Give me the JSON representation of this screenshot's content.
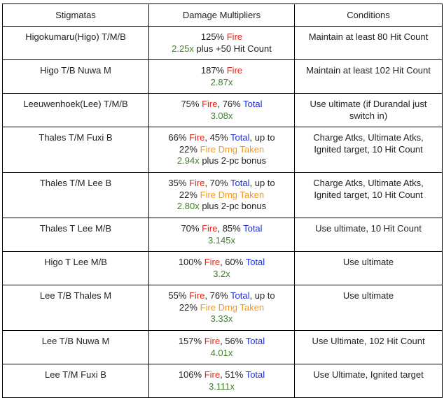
{
  "headers": [
    "Stigmatas",
    "Damage Multipliers",
    "Conditions"
  ],
  "colors": {
    "fire": "#e8261a",
    "total": "#1c2ee0",
    "fire_dmg_taken": "#f39a1e",
    "multiplier": "#3f7f2a"
  },
  "rows": [
    {
      "stigmata": "Higokumaru(Higo) T/M/B",
      "dm": {
        "p1": "125% ",
        "fire": "Fire",
        "mult": "2.25x",
        "extra": " plus +50 Hit Count"
      },
      "condition": "Maintain at least 80 Hit Count"
    },
    {
      "stigmata": "Higo T/B Nuwa M",
      "dm": {
        "p1": "187% ",
        "fire": "Fire",
        "mult": "2.87x"
      },
      "condition": "Maintain at least 102 Hit Count"
    },
    {
      "stigmata": "Leeuwenhoek(Lee) T/M/B",
      "dm": {
        "p1": "75% ",
        "fire": "Fire",
        "p2": ", 76% ",
        "total": "Total",
        "mult": "3.08x"
      },
      "condition": "Use ultimate (if Durandal just switch in)"
    },
    {
      "stigmata": "Thales T/M Fuxi B",
      "dm": {
        "p1": "66% ",
        "fire": "Fire",
        "p2": ", 45% ",
        "total": "Total",
        "p3": ", up to",
        "p4": "22% ",
        "fdt": "Fire Dmg Taken",
        "mult": "2.94x",
        "extra": " plus 2-pc bonus"
      },
      "condition": "Charge Atks, Ultimate Atks, Ignited target, 10 Hit Count"
    },
    {
      "stigmata": "Thales T/M Lee B",
      "dm": {
        "p1": "35% ",
        "fire": "Fire",
        "p2": ", 70% ",
        "total": "Total",
        "p3": ", up to",
        "p4": "22% ",
        "fdt": "Fire Dmg Taken",
        "mult": "2.80x",
        "extra": " plus 2-pc bonus"
      },
      "condition": "Charge Atks, Ultimate Atks, Ignited target, 10 Hit Count"
    },
    {
      "stigmata": "Thales T Lee M/B",
      "dm": {
        "p1": "70% ",
        "fire": "Fire",
        "p2": ", 85% ",
        "total": "Total",
        "mult": "3.145x"
      },
      "condition": "Use ultimate, 10 Hit Count"
    },
    {
      "stigmata": "Higo T Lee M/B",
      "dm": {
        "p1": "100% ",
        "fire": "Fire",
        "p2": ", 60% ",
        "total": "Total",
        "mult": "3.2x"
      },
      "condition": "Use ultimate"
    },
    {
      "stigmata": "Lee T/B Thales M",
      "dm": {
        "p1": "55% ",
        "fire": "Fire",
        "p2": ", 76% ",
        "total": "Total",
        "p3": ", up to",
        "p4": "22% ",
        "fdt": "Fire Dmg Taken",
        "mult": "3.33x"
      },
      "condition": "Use ultimate"
    },
    {
      "stigmata": "Lee T/B Nuwa M",
      "dm": {
        "p1": "157% ",
        "fire": "Fire",
        "p2": ", 56% ",
        "total": "Total",
        "mult": "4.01x"
      },
      "condition": "Use Ultimate, 102 Hit Count"
    },
    {
      "stigmata": "Lee T/M Fuxi B",
      "dm": {
        "p1": "106% ",
        "fire": "Fire",
        "p2": ", 51% ",
        "total": "Total",
        "mult": "3.111x"
      },
      "condition": "Use Ultimate, Ignited target"
    }
  ]
}
